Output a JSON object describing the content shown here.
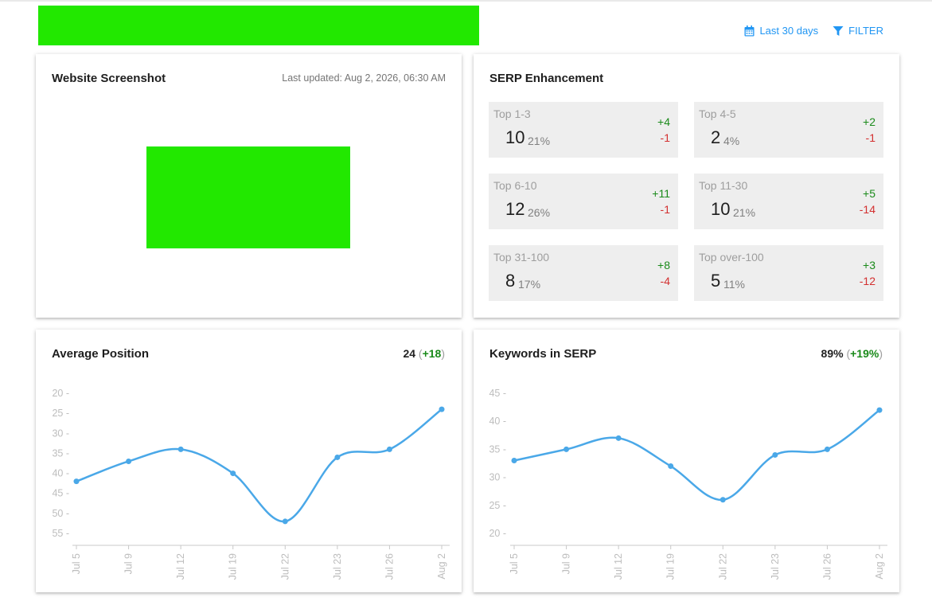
{
  "toolbar": {
    "date_range_label": "Last 30 days",
    "filter_label": "FILTER",
    "accent_color": "#2196f3"
  },
  "banner": {
    "color": "#22e800"
  },
  "screenshot_card": {
    "title": "Website Screenshot",
    "last_updated": "Last updated: Aug 2, 2026, 06:30 AM",
    "placeholder_color": "#22e800"
  },
  "serp_card": {
    "title": "SERP Enhancement",
    "tiles": [
      {
        "label": "Top 1-3",
        "count": "10",
        "percent": "21%",
        "plus": "+4",
        "minus": "-1"
      },
      {
        "label": "Top 4-5",
        "count": "2",
        "percent": "4%",
        "plus": "+2",
        "minus": "-1"
      },
      {
        "label": "Top 6-10",
        "count": "12",
        "percent": "26%",
        "plus": "+11",
        "minus": "-1"
      },
      {
        "label": "Top 11-30",
        "count": "10",
        "percent": "21%",
        "plus": "+5",
        "minus": "-14"
      },
      {
        "label": "Top 31-100",
        "count": "8",
        "percent": "17%",
        "plus": "+8",
        "minus": "-4"
      },
      {
        "label": "Top over-100",
        "count": "5",
        "percent": "11%",
        "plus": "+3",
        "minus": "-12"
      }
    ],
    "colors": {
      "positive": "#1a8a1a",
      "negative": "#d32f2f",
      "tile_bg": "#eeeeee"
    }
  },
  "avg_position_card": {
    "title": "Average Position",
    "value": "24",
    "delta": "+18"
  },
  "keywords_card": {
    "title": "Keywords in SERP",
    "value": "89%",
    "delta": "+19%"
  },
  "chart_data": [
    {
      "type": "line",
      "categories": [
        "Jul 5",
        "Jul 9",
        "Jul 12",
        "Jul 19",
        "Jul 22",
        "Jul 23",
        "Jul 26",
        "Aug 2"
      ],
      "values": [
        42,
        37,
        34,
        40,
        52,
        36,
        34,
        24
      ],
      "yticks": [
        20,
        25,
        30,
        35,
        40,
        45,
        50,
        55
      ],
      "ylim": [
        20,
        55
      ],
      "y_inverted": true,
      "line_color": "#4aa8e8",
      "grid": false
    },
    {
      "type": "line",
      "categories": [
        "Jul 5",
        "Jul 9",
        "Jul 12",
        "Jul 19",
        "Jul 22",
        "Jul 23",
        "Jul 26",
        "Aug 2"
      ],
      "values": [
        33,
        35,
        37,
        32,
        26,
        34,
        35,
        42
      ],
      "yticks": [
        20,
        25,
        30,
        35,
        40,
        45
      ],
      "ylim": [
        20,
        45
      ],
      "y_inverted": false,
      "line_color": "#4aa8e8",
      "grid": false
    }
  ]
}
